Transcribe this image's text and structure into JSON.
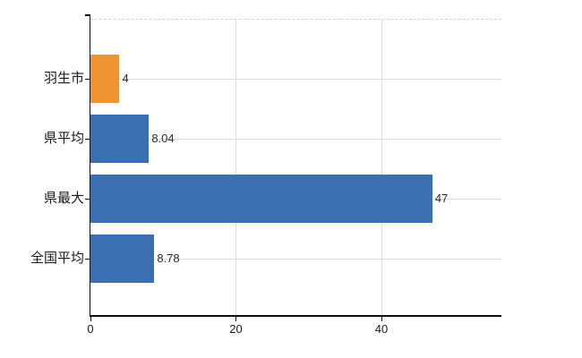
{
  "chart_data": {
    "type": "bar",
    "orientation": "horizontal",
    "title": "",
    "xlabel": "",
    "ylabel": "",
    "categories": [
      "羽生市",
      "県平均",
      "県最大",
      "全国平均"
    ],
    "values": [
      4,
      8.04,
      47,
      8.78
    ],
    "value_labels": [
      "4",
      "8.04",
      "47",
      "8.78"
    ],
    "bar_colors": [
      "#ef9433",
      "#3a6fb2",
      "#3a6fb2",
      "#3a6fb2"
    ],
    "xlim": [
      0,
      56.5
    ],
    "xticks": [
      0,
      20,
      40
    ],
    "xtick_labels": [
      "0",
      "20",
      "40"
    ],
    "grid": true,
    "legend": false,
    "colors": {
      "highlight_bar": "#ef9433",
      "default_bar": "#3a6fb2",
      "axis": "#111111",
      "h_gridline": "#d9e0d4",
      "v_gridline": "#dcdcdc",
      "top_border": "#d2d2d2",
      "text": "#1a1a1a",
      "background": "#ffffff"
    }
  }
}
